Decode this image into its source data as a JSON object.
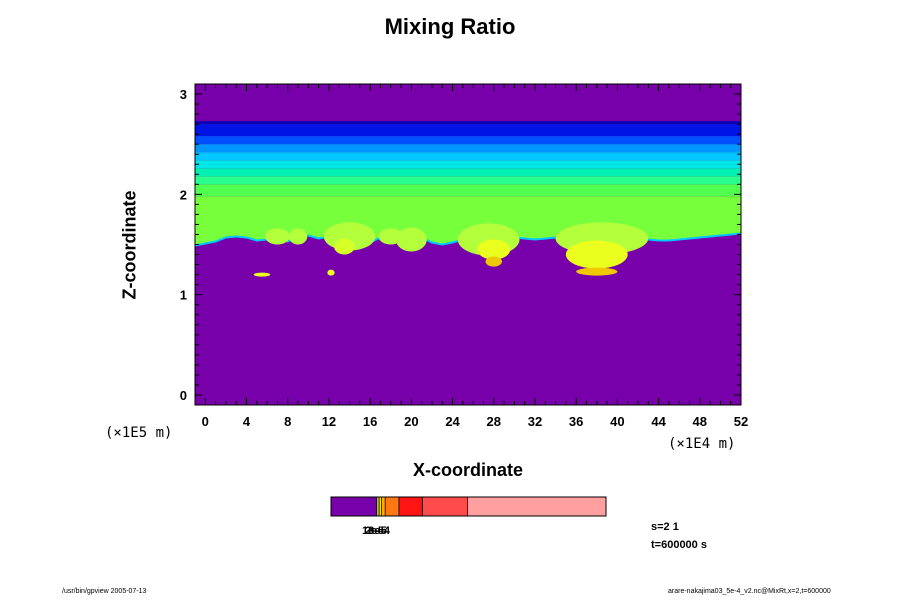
{
  "chart_data": {
    "type": "heatmap",
    "title": "Mixing Ratio",
    "xlabel": "X-coordinate",
    "ylabel": "Z-coordinate",
    "x_scale_note": "(×1E4 m)",
    "z_scale_note": "(×1E5 m)",
    "xlim": [
      -1,
      52
    ],
    "ylim": [
      -0.1,
      3.1
    ],
    "x_ticks": [
      "0",
      "4",
      "8",
      "12",
      "16",
      "20",
      "24",
      "28",
      "32",
      "36",
      "40",
      "44",
      "48",
      "52"
    ],
    "y_ticks": [
      "0",
      "1",
      "2",
      "3"
    ],
    "grid": false,
    "background_color": "#7800aa",
    "bands": [
      {
        "z0": 2.7,
        "z1": 2.73,
        "color": "#0a00b4"
      },
      {
        "z0": 2.58,
        "z1": 2.7,
        "color": "#0014e6"
      },
      {
        "z0": 2.5,
        "z1": 2.58,
        "color": "#0050ff"
      },
      {
        "z0": 2.42,
        "z1": 2.5,
        "color": "#0096ff"
      },
      {
        "z0": 2.34,
        "z1": 2.42,
        "color": "#00c8ff"
      },
      {
        "z0": 2.26,
        "z1": 2.34,
        "color": "#00e6e6"
      },
      {
        "z0": 2.18,
        "z1": 2.26,
        "color": "#00f0b4"
      },
      {
        "z0": 2.1,
        "z1": 2.18,
        "color": "#28ff8c"
      },
      {
        "z0": 1.98,
        "z1": 2.1,
        "color": "#50ff50"
      }
    ],
    "lower_boundary_z": [
      1.49,
      1.51,
      1.53,
      1.57,
      1.58,
      1.57,
      1.54,
      1.55,
      1.58,
      1.53,
      1.58,
      1.59,
      1.56,
      1.58,
      1.56,
      1.5,
      1.48,
      1.52,
      1.57,
      1.55,
      1.58,
      1.6,
      1.57,
      1.52,
      1.5,
      1.52,
      1.55,
      1.58,
      1.56,
      1.53,
      1.55,
      1.57,
      1.56,
      1.55,
      1.56,
      1.57,
      1.56,
      1.55,
      1.54,
      1.55,
      1.56,
      1.57,
      1.58,
      1.56,
      1.55,
      1.54,
      1.54,
      1.55,
      1.56,
      1.57,
      1.58,
      1.59,
      1.6,
      1.61
    ],
    "cells": [
      {
        "x": 7.0,
        "z": 1.58,
        "rx": 1.2,
        "rz": 0.08,
        "color": "#b4ff3c"
      },
      {
        "x": 9.0,
        "z": 1.58,
        "rx": 0.9,
        "rz": 0.08,
        "color": "#b4ff3c"
      },
      {
        "x": 14.0,
        "z": 1.58,
        "rx": 2.5,
        "rz": 0.14,
        "color": "#b4ff3c"
      },
      {
        "x": 13.5,
        "z": 1.48,
        "rx": 1.0,
        "rz": 0.08,
        "color": "#d7ff28"
      },
      {
        "x": 18.0,
        "z": 1.58,
        "rx": 1.2,
        "rz": 0.08,
        "color": "#b4ff3c"
      },
      {
        "x": 20.0,
        "z": 1.55,
        "rx": 1.5,
        "rz": 0.12,
        "color": "#b4ff3c"
      },
      {
        "x": 27.5,
        "z": 1.55,
        "rx": 3.0,
        "rz": 0.16,
        "color": "#b4ff3c"
      },
      {
        "x": 28.0,
        "z": 1.45,
        "rx": 1.6,
        "rz": 0.1,
        "color": "#ebff1e"
      },
      {
        "x": 28.0,
        "z": 1.33,
        "rx": 0.8,
        "rz": 0.05,
        "color": "#f0c800"
      },
      {
        "x": 38.5,
        "z": 1.56,
        "rx": 4.5,
        "rz": 0.16,
        "color": "#b4ff3c"
      },
      {
        "x": 38.0,
        "z": 1.4,
        "rx": 3.0,
        "rz": 0.14,
        "color": "#ebff1e"
      },
      {
        "x": 38.0,
        "z": 1.23,
        "rx": 2.0,
        "rz": 0.04,
        "color": "#f0c800"
      },
      {
        "x": 5.5,
        "z": 1.2,
        "rx": 0.8,
        "rz": 0.02,
        "color": "#ebff1e"
      },
      {
        "x": 12.2,
        "z": 1.22,
        "rx": 0.35,
        "rz": 0.03,
        "color": "#ebff1e"
      }
    ],
    "colorbar": {
      "segments": [
        {
          "v0": 0,
          "v1": 0.166,
          "color": "#7800aa"
        },
        {
          "v0": 0.166,
          "v1": 0.175,
          "color": "#d2c800"
        },
        {
          "v0": 0.175,
          "v1": 0.184,
          "color": "#f0e600"
        },
        {
          "v0": 0.184,
          "v1": 0.197,
          "color": "#ffaa00"
        },
        {
          "v0": 0.197,
          "v1": 0.247,
          "color": "#ff7814"
        },
        {
          "v0": 0.247,
          "v1": 0.332,
          "color": "#ff1414"
        },
        {
          "v0": 0.332,
          "v1": 0.496,
          "color": "#ff4b4b"
        },
        {
          "v0": 0.496,
          "v1": 1.0,
          "color": "#ffa0a0"
        }
      ],
      "labels": [
        "1e-5",
        "2e-5",
        "3e-4"
      ]
    }
  },
  "info": {
    "step": "s=2 1",
    "time": "t=600000 s"
  },
  "footer": {
    "left": "/usr/bin/gpview 2005-07-13",
    "right": "arare-nakajima03_5e-4_v2.nc@MixRt,x=2,t=600000"
  }
}
